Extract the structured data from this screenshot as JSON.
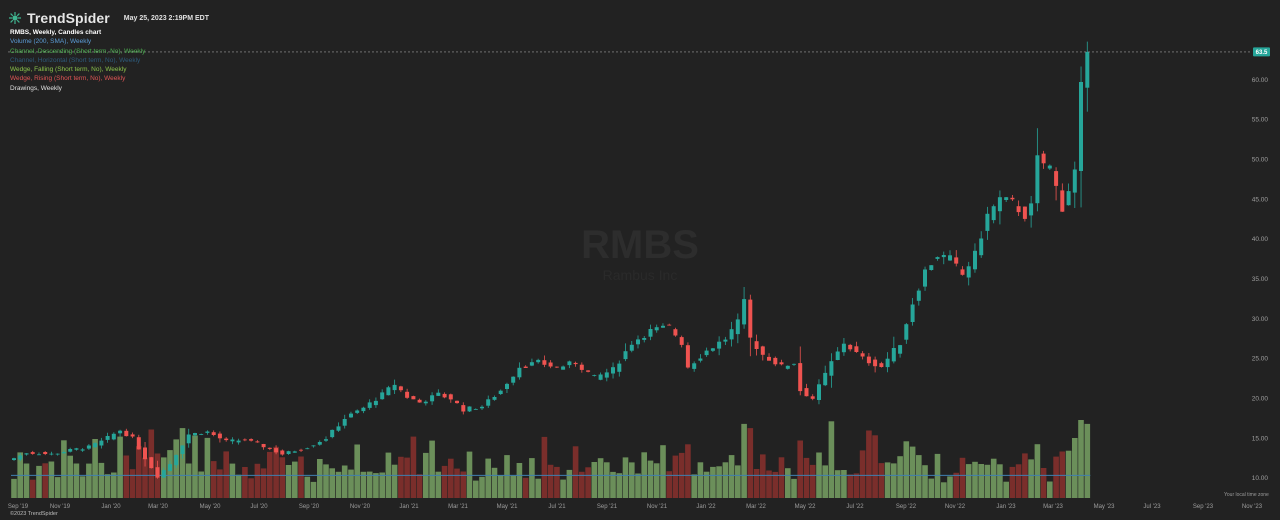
{
  "app": {
    "brand": "TrendSpider",
    "timestamp": "May 25, 2023 2:19PM EDT",
    "copyright": "©2023 TrendSpider",
    "timezone_label": "Your local time zone",
    "watermark_symbol": "RMBS",
    "watermark_subtitle": "Rambus Inc"
  },
  "legend": [
    {
      "text": "RMBS, Weekly, Candles chart",
      "color": "#ffffff"
    },
    {
      "text": "Volume (200, SMA), Weekly",
      "color": "#5b9bd5"
    },
    {
      "text": "Channel, Descending (Short term, No), Weekly",
      "color": "#4caf50"
    },
    {
      "text": "Channel, Horizontal (Short term, No), Weekly",
      "color": "#2d5a7a"
    },
    {
      "text": "Wedge, Falling (Short term, No), Weekly",
      "color": "#8bc34a"
    },
    {
      "text": "Wedge, Rising (Short term, No), Weekly",
      "color": "#e05555"
    },
    {
      "text": "Drawings, Weekly",
      "color": "#e0e0e0"
    }
  ],
  "colors": {
    "background": "#222222",
    "up": "#26a69a",
    "down": "#ef5350",
    "vol_up": "#6b8f5a",
    "vol_down": "#7a2e2b",
    "sma": "#3f7fb0",
    "last_price": "#26a69a"
  },
  "chart_data": {
    "type": "candlestick",
    "symbol": "RMBS",
    "timeframe": "Weekly",
    "last_price": "63.5",
    "y_ticks": [
      10,
      15,
      20,
      25,
      30,
      35,
      40,
      45,
      50,
      55,
      60
    ],
    "ylim": [
      7.5,
      65.5
    ],
    "x_ticks": [
      "Sep '19",
      "Nov '19",
      "Jan '20",
      "Mar '20",
      "May '20",
      "Jul '20",
      "Sep '20",
      "Nov '20",
      "Jan '21",
      "Mar '21",
      "May '21",
      "Jul '21",
      "Sep '21",
      "Nov '21",
      "Jan '22",
      "Mar '22",
      "May '22",
      "Jul '22",
      "Sep '22",
      "Nov '22",
      "Jan '23",
      "Mar '23",
      "May '23",
      "Jul '23",
      "Sep '23",
      "Nov '23"
    ],
    "anchors": [
      [
        0,
        12.5
      ],
      [
        2,
        13.2
      ],
      [
        6,
        13.0
      ],
      [
        9,
        13.5
      ],
      [
        12,
        13.9
      ],
      [
        14,
        14.6
      ],
      [
        17,
        16.0
      ],
      [
        19,
        15.0
      ],
      [
        21,
        12.5
      ],
      [
        23,
        10.2
      ],
      [
        25,
        11.8
      ],
      [
        28,
        15.5
      ],
      [
        31,
        15.8
      ],
      [
        34,
        14.6
      ],
      [
        37,
        14.8
      ],
      [
        40,
        14.0
      ],
      [
        43,
        13.0
      ],
      [
        47,
        13.9
      ],
      [
        50,
        15.0
      ],
      [
        53,
        17.5
      ],
      [
        56,
        18.8
      ],
      [
        59,
        20.5
      ],
      [
        61,
        21.8
      ],
      [
        63,
        20.2
      ],
      [
        65,
        19.5
      ],
      [
        68,
        20.5
      ],
      [
        70,
        20.0
      ],
      [
        72,
        18.6
      ],
      [
        75,
        19.0
      ],
      [
        78,
        21.0
      ],
      [
        81,
        24.0
      ],
      [
        84,
        24.5
      ],
      [
        87,
        23.9
      ],
      [
        90,
        24.5
      ],
      [
        93,
        22.6
      ],
      [
        96,
        23.6
      ],
      [
        99,
        27.0
      ],
      [
        102,
        28.5
      ],
      [
        105,
        29.0
      ],
      [
        107,
        27.0
      ],
      [
        108,
        24.0
      ],
      [
        111,
        26.0
      ],
      [
        114,
        27.5
      ],
      [
        116,
        29.5
      ],
      [
        117,
        32.0
      ],
      [
        118,
        27.5
      ],
      [
        120,
        25.5
      ],
      [
        123,
        24.0
      ],
      [
        125,
        24.5
      ],
      [
        126,
        21.0
      ],
      [
        128,
        20.0
      ],
      [
        129,
        21.5
      ],
      [
        131,
        24.5
      ],
      [
        133,
        27.0
      ],
      [
        136,
        25.0
      ],
      [
        139,
        24.0
      ],
      [
        142,
        27.0
      ],
      [
        144,
        32.0
      ],
      [
        146,
        36.0
      ],
      [
        148,
        38.0
      ],
      [
        150,
        37.5
      ],
      [
        152,
        35.5
      ],
      [
        154,
        38.0
      ],
      [
        156,
        43.0
      ],
      [
        158,
        45.0
      ],
      [
        160,
        44.5
      ],
      [
        162,
        43.0
      ],
      [
        163,
        44.0
      ],
      [
        164,
        50.0
      ],
      [
        166,
        49.0
      ],
      [
        168,
        44.0
      ],
      [
        170,
        48.5
      ],
      [
        171,
        59.0
      ],
      [
        172,
        63.5
      ]
    ],
    "volume_sma_level": 0.29
  }
}
